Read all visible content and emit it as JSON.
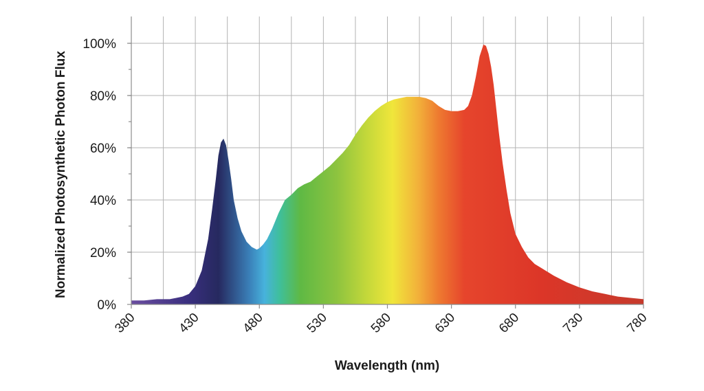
{
  "chart_data": {
    "type": "area",
    "title": "",
    "xlabel": "Wavelength (nm)",
    "ylabel": "Normalized Photosynthetic Photon Flux",
    "xlim": [
      380,
      780
    ],
    "ylim": [
      0,
      105
    ],
    "x_ticks": [
      380,
      430,
      480,
      530,
      580,
      630,
      680,
      730,
      780
    ],
    "x_tick_labels": [
      "380",
      "430",
      "480",
      "530",
      "580",
      "630",
      "680",
      "730",
      "780"
    ],
    "y_ticks": [
      0,
      20,
      40,
      60,
      80,
      100
    ],
    "y_tick_labels": [
      "0%",
      "20%",
      "40%",
      "60%",
      "80%",
      "100%"
    ],
    "grid": true,
    "legend": "none",
    "fill": "spectral gradient (violet to deep red by wavelength)",
    "series": [
      {
        "x": [
          380,
          390,
          400,
          410,
          420,
          425,
          430,
          435,
          440,
          443,
          446,
          448,
          450,
          452,
          454,
          456,
          458,
          460,
          463,
          466,
          470,
          474,
          478,
          480,
          483,
          486,
          490,
          495,
          500,
          505,
          510,
          515,
          520,
          525,
          530,
          535,
          540,
          545,
          550,
          555,
          560,
          565,
          570,
          575,
          580,
          585,
          590,
          595,
          600,
          605,
          610,
          615,
          620,
          625,
          630,
          635,
          640,
          643,
          646,
          649,
          652,
          655,
          657,
          659,
          661,
          663,
          665,
          667,
          670,
          673,
          676,
          680,
          685,
          690,
          695,
          700,
          710,
          720,
          730,
          740,
          750,
          760,
          770,
          780
        ],
        "y": [
          1.5,
          1.5,
          2,
          2,
          3,
          4,
          7,
          13,
          25,
          36,
          48,
          57,
          62,
          63.5,
          61,
          55,
          48,
          40,
          33,
          28,
          24,
          22,
          21,
          21.5,
          23,
          25,
          29,
          35,
          40,
          42,
          44.5,
          46,
          47,
          49,
          51,
          53,
          55.5,
          58,
          61,
          65,
          68.5,
          71.5,
          74,
          76,
          77.5,
          78.5,
          79,
          79.5,
          79.5,
          79.5,
          79,
          78,
          76,
          74.5,
          74,
          74,
          74.5,
          76,
          80,
          87,
          95,
          99.5,
          99,
          96,
          91,
          84,
          75,
          66,
          54,
          44,
          35,
          27,
          22,
          18,
          15.5,
          14,
          11,
          8.5,
          6.5,
          5,
          4,
          3,
          2.5,
          2
        ]
      }
    ]
  }
}
